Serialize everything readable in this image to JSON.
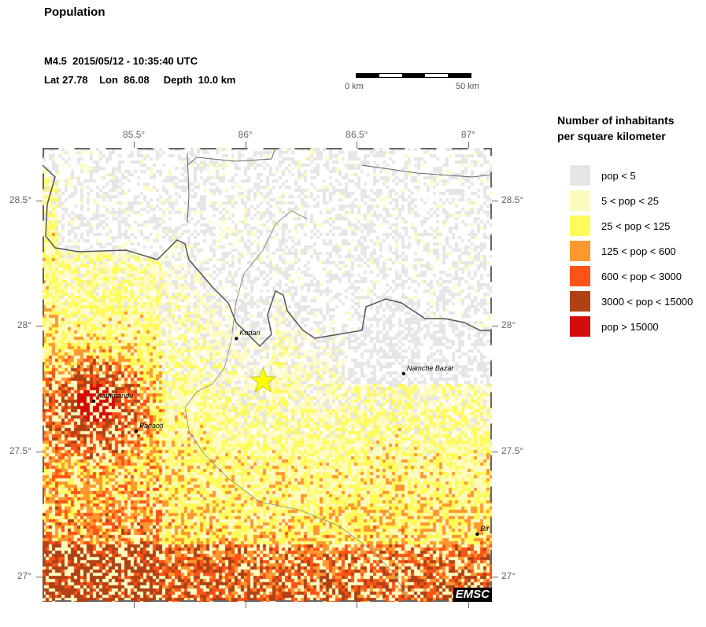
{
  "header": {
    "title": "Population",
    "event_line": "M4.5  2015/05/12 - 10:35:40 UTC",
    "location_line": "Lat 27.78    Lon  86.08     Depth  10.0 km"
  },
  "scale_bar": {
    "start_label": "0 km",
    "end_label": "50 km",
    "length_km": 50
  },
  "map": {
    "extent": {
      "lon_min": 85.09,
      "lon_max": 87.106,
      "lat_min": 26.9,
      "lat_max": 28.71
    },
    "lon_ticks": [
      {
        "value": 85.5,
        "label": "85.5°"
      },
      {
        "value": 86,
        "label": "86°"
      },
      {
        "value": 86.5,
        "label": "86.5°"
      },
      {
        "value": 87,
        "label": "87°"
      }
    ],
    "lat_ticks": [
      {
        "value": 28.5,
        "label": "28.5°"
      },
      {
        "value": 28,
        "label": "28°"
      },
      {
        "value": 27.5,
        "label": "27.5°"
      },
      {
        "value": 27,
        "label": "27°"
      }
    ],
    "epicenter": {
      "lat": 27.78,
      "lon": 86.08,
      "icon": "star-icon",
      "color": "#ffff00"
    },
    "cities": [
      {
        "name": "Kodari",
        "lat": 27.95,
        "lon": 85.96
      },
      {
        "name": "Kathmandu",
        "lat": 27.7,
        "lon": 85.32
      },
      {
        "name": "Panaoti",
        "lat": 27.58,
        "lon": 85.51
      },
      {
        "name": "Namche Bazar",
        "lat": 27.81,
        "lon": 86.71
      },
      {
        "name": "Bir",
        "lat": 27.17,
        "lon": 87.04
      }
    ],
    "logo": "EMSC"
  },
  "legend": {
    "title_line1": "Number of inhabitants",
    "title_line2": "per square kilometer",
    "items": [
      {
        "label": "pop < 5",
        "color": "#e6e6e6"
      },
      {
        "label": "5 < pop < 25",
        "color": "#fdfbc0"
      },
      {
        "label": "25 < pop < 125",
        "color": "#fefb5a"
      },
      {
        "label": "125 < pop < 600",
        "color": "#fd9831"
      },
      {
        "label": "600 < pop < 3000",
        "color": "#fd5316"
      },
      {
        "label": "3000 < pop < 15000",
        "color": "#b04115"
      },
      {
        "label": "pop > 15000",
        "color": "#d40d0b"
      }
    ]
  }
}
